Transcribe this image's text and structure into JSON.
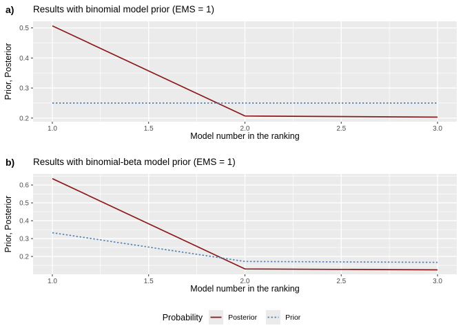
{
  "legend": {
    "title": "Probability",
    "entries": [
      {
        "label": "Posterior",
        "style": "solid"
      },
      {
        "label": "Prior",
        "style": "dashed"
      }
    ],
    "position": "bottom"
  },
  "colors": {
    "posterior": "#8B1A1A",
    "prior": "#4F81B4",
    "panel_background": "#EBEBEB",
    "gridline": "#FFFFFF",
    "tick_mark": "#333333",
    "tick_label": "#4D4D4D",
    "text": "#000000",
    "legend_key": "#EBEBEB"
  },
  "chart_data": [
    {
      "type": "line",
      "panel_label": "a)",
      "title": "Results with binomial model prior (EMS = 1)",
      "xlabel": "Model number in the ranking",
      "ylabel": "Prior, Posterior",
      "x": [
        1,
        2,
        3
      ],
      "series": [
        {
          "name": "Posterior",
          "values": [
            0.507,
            0.207,
            0.203
          ],
          "line": "solid",
          "color_key": "posterior"
        },
        {
          "name": "Prior",
          "values": [
            0.25,
            0.25,
            0.25
          ],
          "line": "dashed",
          "color_key": "prior"
        }
      ],
      "xticks": {
        "values": [
          1.0,
          1.5,
          2.0,
          2.5,
          3.0
        ],
        "labels": [
          "1.0",
          "1.5",
          "2.0",
          "2.5",
          "3.0"
        ]
      },
      "yticks": {
        "values": [
          0.2,
          0.3,
          0.4,
          0.5
        ],
        "labels": [
          "0.2",
          "0.3",
          "0.4",
          "0.5"
        ]
      },
      "xminor": [
        1.25,
        1.75,
        2.25,
        2.75
      ],
      "yminor": [
        0.25,
        0.35,
        0.45
      ],
      "xlim": [
        0.9,
        3.1
      ],
      "ylim": [
        0.188,
        0.522
      ],
      "grid": true
    },
    {
      "type": "line",
      "panel_label": "b)",
      "title": "Results with binomial-beta model prior (EMS = 1)",
      "xlabel": "Model number in the ranking",
      "ylabel": "Prior, Posterior",
      "x": [
        1,
        2,
        3
      ],
      "series": [
        {
          "name": "Posterior",
          "values": [
            0.636,
            0.13,
            0.125
          ],
          "line": "solid",
          "color_key": "posterior"
        },
        {
          "name": "Prior",
          "values": [
            0.333,
            0.172,
            0.167
          ],
          "line": "dashed",
          "color_key": "prior"
        }
      ],
      "xticks": {
        "values": [
          1.0,
          1.5,
          2.0,
          2.5,
          3.0
        ],
        "labels": [
          "1.0",
          "1.5",
          "2.0",
          "2.5",
          "3.0"
        ]
      },
      "yticks": {
        "values": [
          0.2,
          0.3,
          0.4,
          0.5,
          0.6
        ],
        "labels": [
          "0.2",
          "0.3",
          "0.4",
          "0.5",
          "0.6"
        ]
      },
      "xminor": [
        1.25,
        1.75,
        2.25,
        2.75
      ],
      "yminor": [
        0.15,
        0.25,
        0.35,
        0.45,
        0.55,
        0.65
      ],
      "xlim": [
        0.9,
        3.1
      ],
      "ylim": [
        0.1,
        0.662
      ],
      "grid": true
    }
  ]
}
